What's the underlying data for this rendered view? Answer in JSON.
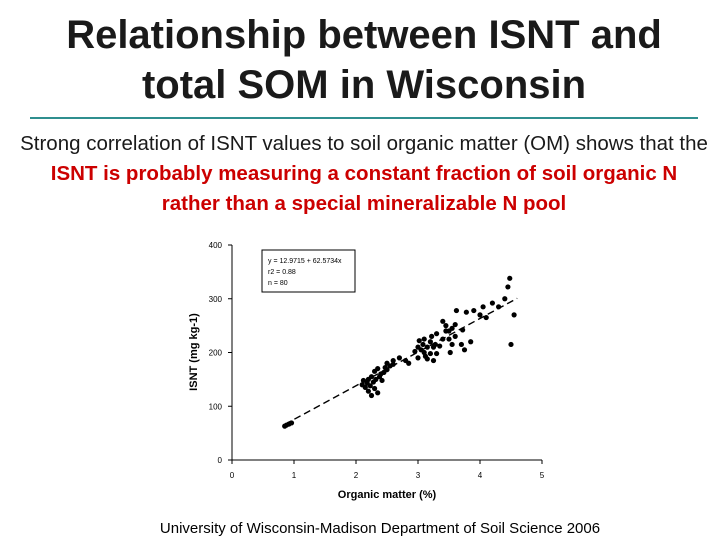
{
  "slide": {
    "title_line1": "Relationship between ISNT and",
    "title_line2": "total SOM in Wisconsin",
    "subtitle_plain": "Strong correlation of ISNT values to soil organic matter (OM) shows that the ",
    "subtitle_emphasis": "ISNT is probably measuring a constant fraction of soil organic N rather than a special mineralizable N pool",
    "footer": "University of Wisconsin-Madison Department of Soil Science 2006"
  },
  "colors": {
    "title": "#1a1a1a",
    "rule": "#2f8f8f",
    "emphasis": "#cc0000"
  },
  "chart_data": {
    "type": "scatter",
    "title": "",
    "xlabel": "Organic matter (%)",
    "ylabel": "ISNT (mg kg-1)",
    "xlim": [
      0,
      5
    ],
    "ylim": [
      0,
      400
    ],
    "xticks": [
      "0",
      "1",
      "2",
      "3",
      "4",
      "5"
    ],
    "yticks": [
      "0",
      "100",
      "200",
      "300",
      "400"
    ],
    "annotation": {
      "equation": "y = 12.9715 + 62.5734x",
      "r2": "r2 = 0.88",
      "n": "n = 80"
    },
    "regression": {
      "intercept": 12.9715,
      "slope": 62.5734,
      "x_range": [
        0.85,
        4.6
      ]
    },
    "points": [
      [
        0.85,
        63
      ],
      [
        0.88,
        65
      ],
      [
        0.92,
        67
      ],
      [
        0.96,
        69
      ],
      [
        2.1,
        140
      ],
      [
        2.12,
        148
      ],
      [
        2.15,
        135
      ],
      [
        2.18,
        143
      ],
      [
        2.2,
        150
      ],
      [
        2.2,
        128
      ],
      [
        2.23,
        138
      ],
      [
        2.25,
        120
      ],
      [
        2.25,
        155
      ],
      [
        2.28,
        145
      ],
      [
        2.3,
        133
      ],
      [
        2.3,
        165
      ],
      [
        2.32,
        150
      ],
      [
        2.35,
        170
      ],
      [
        2.35,
        125
      ],
      [
        2.38,
        155
      ],
      [
        2.4,
        160
      ],
      [
        2.42,
        148
      ],
      [
        2.45,
        163
      ],
      [
        2.47,
        172
      ],
      [
        2.5,
        168
      ],
      [
        2.5,
        180
      ],
      [
        2.55,
        175
      ],
      [
        2.6,
        185
      ],
      [
        2.7,
        190
      ],
      [
        2.8,
        185
      ],
      [
        2.85,
        180
      ],
      [
        2.95,
        202
      ],
      [
        3.0,
        190
      ],
      [
        3.0,
        210
      ],
      [
        3.02,
        222
      ],
      [
        3.05,
        205
      ],
      [
        3.08,
        215
      ],
      [
        3.1,
        200
      ],
      [
        3.1,
        225
      ],
      [
        3.12,
        193
      ],
      [
        3.15,
        210
      ],
      [
        3.15,
        188
      ],
      [
        3.2,
        220
      ],
      [
        3.2,
        198
      ],
      [
        3.22,
        230
      ],
      [
        3.25,
        210
      ],
      [
        3.25,
        185
      ],
      [
        3.28,
        215
      ],
      [
        3.3,
        198
      ],
      [
        3.3,
        235
      ],
      [
        3.35,
        212
      ],
      [
        3.4,
        225
      ],
      [
        3.4,
        258
      ],
      [
        3.45,
        250
      ],
      [
        3.5,
        240
      ],
      [
        3.5,
        225
      ],
      [
        3.52,
        200
      ],
      [
        3.55,
        215
      ],
      [
        3.55,
        245
      ],
      [
        3.6,
        252
      ],
      [
        3.6,
        230
      ],
      [
        3.62,
        278
      ],
      [
        3.7,
        215
      ],
      [
        3.72,
        242
      ],
      [
        3.75,
        205
      ],
      [
        3.78,
        275
      ],
      [
        3.85,
        220
      ],
      [
        3.9,
        278
      ],
      [
        4.0,
        270
      ],
      [
        4.05,
        285
      ],
      [
        4.2,
        292
      ],
      [
        4.3,
        285
      ],
      [
        4.4,
        300
      ],
      [
        4.45,
        322
      ],
      [
        4.48,
        338
      ],
      [
        4.5,
        215
      ],
      [
        4.55,
        270
      ],
      [
        4.1,
        265
      ],
      [
        2.6,
        178
      ],
      [
        3.45,
        240
      ]
    ]
  }
}
